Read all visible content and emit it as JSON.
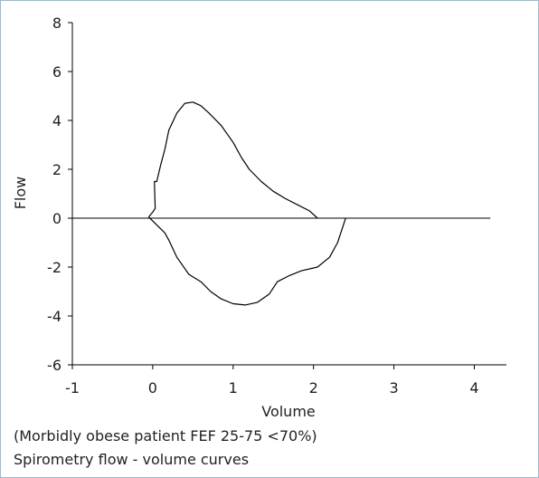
{
  "caption": {
    "line1": "(Morbidly obese patient FEF 25-75 <70%)",
    "line2": "Spirometry flow - volume curves"
  },
  "colors": {
    "line": "#000000",
    "frame_border": "#9fb9c8",
    "text": "#222222"
  },
  "chart_data": {
    "type": "line",
    "xlabel": "Volume",
    "ylabel": "Flow",
    "xlim": [
      -1,
      4.4
    ],
    "ylim": [
      -6,
      8
    ],
    "x_ticks": [
      -1,
      0,
      1,
      2,
      3,
      4
    ],
    "y_ticks": [
      -6,
      -4,
      -2,
      0,
      2,
      4,
      6,
      8
    ],
    "x_tick_labels": [
      "-1",
      "0",
      "1",
      "2",
      "3",
      "4"
    ],
    "y_tick_labels": [
      "-6",
      "-4",
      "-2",
      "0",
      "2",
      "4",
      "6",
      "8"
    ],
    "grid": false,
    "baseline": {
      "y": 0,
      "x_range": [
        -1,
        4.2
      ]
    },
    "series": [
      {
        "kind": "expiratory",
        "points": [
          [
            -0.05,
            0.05
          ],
          [
            0.0,
            0.25
          ],
          [
            0.03,
            0.4
          ],
          [
            0.02,
            1.5
          ],
          [
            0.05,
            1.5
          ],
          [
            0.1,
            2.2
          ],
          [
            0.15,
            2.8
          ],
          [
            0.2,
            3.6
          ],
          [
            0.3,
            4.3
          ],
          [
            0.4,
            4.7
          ],
          [
            0.5,
            4.75
          ],
          [
            0.6,
            4.6
          ],
          [
            0.7,
            4.3
          ],
          [
            0.85,
            3.8
          ],
          [
            1.0,
            3.1
          ],
          [
            1.1,
            2.5
          ],
          [
            1.2,
            2.0
          ],
          [
            1.35,
            1.5
          ],
          [
            1.5,
            1.1
          ],
          [
            1.65,
            0.8
          ],
          [
            1.8,
            0.55
          ],
          [
            1.95,
            0.3
          ],
          [
            2.05,
            0.0
          ]
        ]
      },
      {
        "kind": "inspiratory",
        "points": [
          [
            -0.05,
            0.05
          ],
          [
            0.15,
            -0.6
          ],
          [
            0.2,
            -0.9
          ],
          [
            0.3,
            -1.6
          ],
          [
            0.45,
            -2.3
          ],
          [
            0.6,
            -2.6
          ],
          [
            0.72,
            -3.0
          ],
          [
            0.85,
            -3.3
          ],
          [
            1.0,
            -3.5
          ],
          [
            1.15,
            -3.55
          ],
          [
            1.3,
            -3.45
          ],
          [
            1.45,
            -3.1
          ],
          [
            1.55,
            -2.6
          ],
          [
            1.7,
            -2.35
          ],
          [
            1.85,
            -2.15
          ],
          [
            2.05,
            -2.0
          ],
          [
            2.2,
            -1.6
          ],
          [
            2.3,
            -1.0
          ],
          [
            2.4,
            0.0
          ]
        ]
      }
    ]
  }
}
